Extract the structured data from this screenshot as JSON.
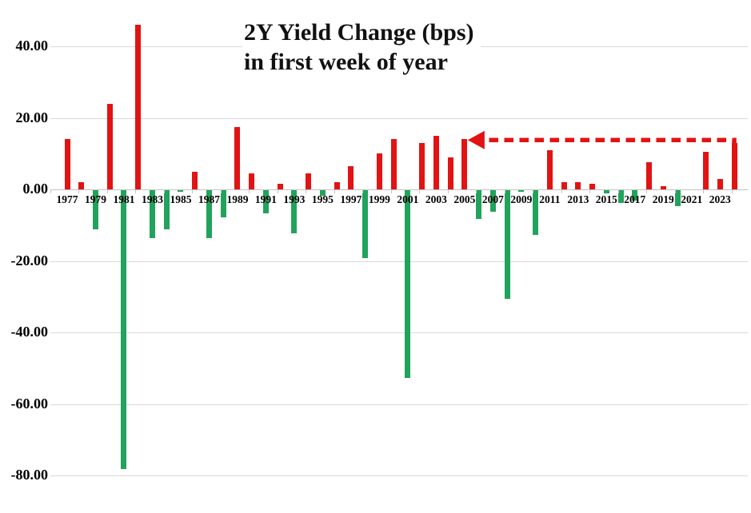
{
  "chart_data": {
    "type": "bar",
    "title_line1": "2Y Yield Change (bps)",
    "title_line2": "in first week of year",
    "categories": [
      1977,
      1978,
      1979,
      1980,
      1981,
      1982,
      1983,
      1984,
      1985,
      1986,
      1987,
      1988,
      1989,
      1990,
      1991,
      1992,
      1993,
      1994,
      1995,
      1996,
      1997,
      1998,
      1999,
      2000,
      2001,
      2002,
      2003,
      2004,
      2005,
      2006,
      2007,
      2008,
      2009,
      2010,
      2011,
      2012,
      2013,
      2014,
      2015,
      2016,
      2017,
      2018,
      2019,
      2020,
      2021,
      2022,
      2023,
      2024
    ],
    "values": [
      14,
      2,
      -11,
      24,
      -78,
      46,
      -13.5,
      -11,
      -0.5,
      5,
      -13.5,
      -7.5,
      17.5,
      4.5,
      -6.5,
      1.5,
      -12,
      4.5,
      -1.5,
      2,
      6.5,
      -19,
      10,
      14,
      -52.5,
      13,
      15,
      9,
      14,
      -8,
      -6,
      -30.5,
      -0.5,
      -12.5,
      11,
      2,
      2,
      1.5,
      -1,
      -3.5,
      -3,
      7.5,
      1,
      -4.5,
      0,
      10.5,
      3,
      13
    ],
    "bar_color_positive": "#e21313",
    "bar_color_negative": "#21a35c",
    "gridline_color": "#d9d9d9",
    "axis_color": "#c2c2c2",
    "y_axis": {
      "tick_values": [
        40,
        20,
        0,
        -20,
        -40,
        -60,
        -80
      ],
      "tick_labels": [
        "40.00",
        "20.00",
        "0.00",
        "-20.00",
        "-40.00",
        "-60.00",
        "-80.00"
      ],
      "range": [
        -80,
        46
      ],
      "grid": true
    },
    "x_axis": {
      "tick_labels": [
        "1977",
        "1979",
        "1981",
        "1983",
        "1985",
        "1987",
        "1989",
        "1991",
        "1993",
        "1995",
        "1997",
        "1999",
        "2001",
        "2003",
        "2005",
        "2007",
        "2009",
        "2011",
        "2013",
        "2015",
        "2017",
        "2019",
        "2021",
        "2023"
      ]
    },
    "annotation": {
      "shape": "dashed-arrow",
      "color": "#e21313",
      "from_year": 2024,
      "to_year": 2005,
      "level_bps": 13.8,
      "direction": "left"
    },
    "legend": "none"
  }
}
